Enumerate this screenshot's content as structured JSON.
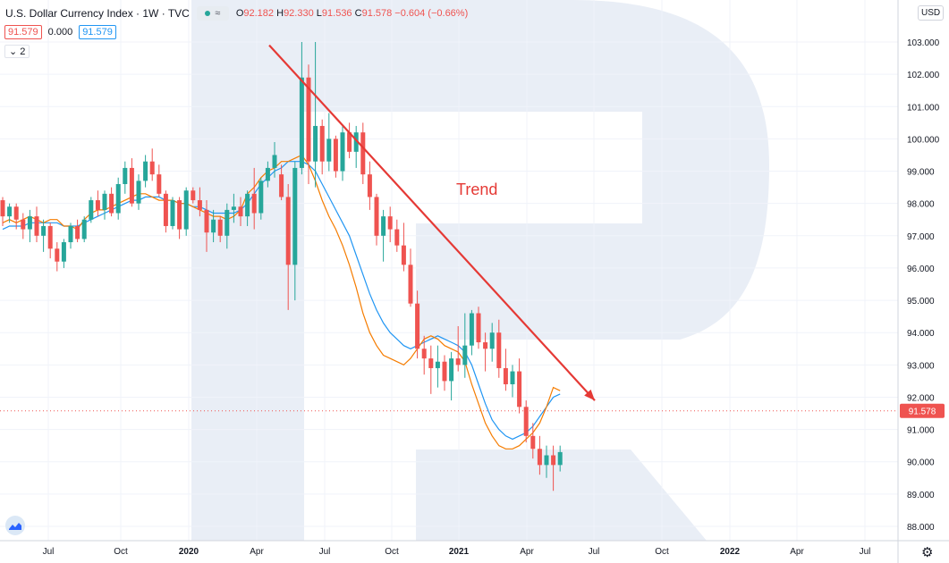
{
  "header": {
    "symbol_title": "U.S. Dollar Currency Index · 1W · TVC",
    "indicator_glyph": "≈",
    "ohlc": {
      "o_label": "O",
      "o_value": "92.182",
      "h_label": "H",
      "h_value": "92.330",
      "l_label": "L",
      "l_value": "91.536",
      "c_label": "C",
      "c_value": "91.578",
      "change": "−0.604 (−0.66%)"
    },
    "bid": "91.579",
    "spread": "0.000",
    "ask": "91.579",
    "collapse_label": "2"
  },
  "price_scale": {
    "currency": "USD",
    "current_price_label": "91.578",
    "tick_labels": [
      "88.000",
      "89.000",
      "90.000",
      "91.000",
      "92.000",
      "93.000",
      "94.000",
      "95.000",
      "96.000",
      "97.000",
      "98.000",
      "99.000",
      "100.000",
      "101.000",
      "102.000",
      "103.000"
    ]
  },
  "time_scale": {
    "tick_labels": [
      "Jul",
      "Oct",
      "2020",
      "Apr",
      "Jul",
      "Oct",
      "2021",
      "Apr",
      "Jul",
      "Oct",
      "2022",
      "Apr",
      "Jul"
    ]
  },
  "annotation": {
    "trend_label": "Trend"
  },
  "colors": {
    "up": "#26a69a",
    "down": "#ef5350",
    "ma_fast": "#f57c00",
    "ma_slow": "#2196f3",
    "trend_line": "#e53935",
    "watermark": "#e9eef6"
  },
  "chart_data": {
    "type": "candlestick",
    "title": "U.S. Dollar Currency Index · 1W · TVC",
    "y_range": [
      87.6,
      103.9
    ],
    "x_ticks": [
      "Jul",
      "Oct",
      "2020",
      "Apr",
      "Jul",
      "Oct",
      "2021",
      "Apr",
      "Jul",
      "Oct",
      "2022",
      "Apr",
      "Jul"
    ],
    "last_price": 91.578,
    "trend_line": {
      "label": "Trend",
      "start": {
        "week": 40,
        "value": 102.9
      },
      "end": {
        "week": 85,
        "value": 91.9
      }
    },
    "ma_fast": [
      97.4,
      97.5,
      97.4,
      97.5,
      97.6,
      97.5,
      97.4,
      97.5,
      97.5,
      97.3,
      97.3,
      97.2,
      97.5,
      97.7,
      97.8,
      97.8,
      97.9,
      98.0,
      98.1,
      98.2,
      98.3,
      98.3,
      98.2,
      98.1,
      98.1,
      98.1,
      98.0,
      98.0,
      97.9,
      97.8,
      97.7,
      97.6,
      97.6,
      97.5,
      97.6,
      97.8,
      98.3,
      98.5,
      98.8,
      99.0,
      99.1,
      99.3,
      99.3,
      99.4,
      99.5,
      99.2,
      98.7,
      98.1,
      97.6,
      97.2,
      96.7,
      96.1,
      95.4,
      94.6,
      94.0,
      93.6,
      93.3,
      93.2,
      93.1,
      93.0,
      93.2,
      93.5,
      93.8,
      93.9,
      93.8,
      93.6,
      93.5,
      93.4,
      93.1,
      92.4,
      91.8,
      91.2,
      90.8,
      90.5,
      90.4,
      90.4,
      90.5,
      90.7,
      90.9,
      91.2,
      91.7,
      92.3,
      92.2
    ],
    "ma_slow": [
      97.2,
      97.3,
      97.3,
      97.3,
      97.4,
      97.4,
      97.4,
      97.4,
      97.4,
      97.3,
      97.3,
      97.3,
      97.4,
      97.5,
      97.6,
      97.7,
      97.8,
      97.9,
      98.0,
      98.1,
      98.1,
      98.2,
      98.2,
      98.2,
      98.1,
      98.1,
      98.0,
      98.0,
      97.9,
      97.9,
      97.8,
      97.7,
      97.7,
      97.7,
      97.7,
      97.8,
      98.0,
      98.3,
      98.6,
      98.8,
      99.0,
      99.1,
      99.3,
      99.3,
      99.3,
      99.2,
      99.0,
      98.6,
      98.2,
      97.8,
      97.4,
      97.0,
      96.4,
      95.8,
      95.2,
      94.7,
      94.3,
      94.0,
      93.8,
      93.6,
      93.5,
      93.6,
      93.7,
      93.8,
      93.9,
      93.8,
      93.7,
      93.6,
      93.4,
      93.0,
      92.4,
      91.8,
      91.3,
      91.0,
      90.8,
      90.7,
      90.8,
      90.9,
      91.1,
      91.4,
      91.7,
      92.0,
      92.1
    ],
    "candles": [
      [
        98.1,
        98.2,
        97.3,
        97.6
      ],
      [
        97.6,
        98.0,
        97.4,
        97.9
      ],
      [
        97.9,
        98.0,
        97.2,
        97.5
      ],
      [
        97.5,
        97.7,
        96.9,
        97.2
      ],
      [
        97.2,
        97.8,
        96.8,
        97.6
      ],
      [
        97.6,
        97.9,
        96.8,
        97.0
      ],
      [
        97.0,
        97.5,
        96.5,
        97.3
      ],
      [
        97.3,
        97.4,
        96.3,
        96.6
      ],
      [
        96.6,
        96.8,
        95.9,
        96.2
      ],
      [
        96.2,
        96.9,
        96.0,
        96.8
      ],
      [
        96.8,
        97.4,
        96.6,
        97.3
      ],
      [
        97.3,
        97.5,
        96.8,
        96.9
      ],
      [
        96.9,
        97.6,
        96.8,
        97.5
      ],
      [
        97.5,
        98.2,
        97.4,
        98.1
      ],
      [
        98.1,
        98.4,
        97.6,
        97.8
      ],
      [
        97.8,
        98.4,
        97.5,
        98.3
      ],
      [
        98.3,
        98.5,
        97.6,
        97.7
      ],
      [
        97.7,
        98.8,
        97.5,
        98.6
      ],
      [
        98.6,
        99.3,
        98.3,
        99.1
      ],
      [
        99.1,
        99.4,
        97.9,
        98.0
      ],
      [
        98.0,
        98.9,
        97.8,
        98.7
      ],
      [
        98.7,
        99.5,
        98.5,
        99.3
      ],
      [
        99.3,
        99.7,
        98.7,
        98.9
      ],
      [
        98.9,
        99.2,
        98.2,
        98.3
      ],
      [
        98.3,
        98.4,
        97.1,
        97.3
      ],
      [
        97.3,
        98.2,
        97.2,
        98.1
      ],
      [
        98.1,
        98.2,
        96.9,
        97.2
      ],
      [
        97.2,
        98.5,
        97.0,
        98.4
      ],
      [
        98.4,
        98.5,
        98.0,
        98.1
      ],
      [
        98.1,
        98.5,
        97.6,
        97.8
      ],
      [
        97.8,
        98.1,
        96.5,
        97.1
      ],
      [
        97.1,
        97.8,
        96.8,
        97.5
      ],
      [
        97.5,
        97.6,
        96.8,
        97.0
      ],
      [
        97.0,
        98.0,
        96.6,
        97.8
      ],
      [
        97.8,
        98.3,
        97.4,
        97.9
      ],
      [
        97.9,
        98.2,
        97.3,
        97.6
      ],
      [
        97.6,
        98.4,
        97.3,
        98.3
      ],
      [
        98.3,
        99.1,
        97.2,
        97.7
      ],
      [
        97.7,
        98.8,
        97.5,
        98.7
      ],
      [
        98.7,
        99.3,
        98.5,
        99.1
      ],
      [
        99.1,
        99.9,
        98.8,
        99.5
      ],
      [
        98.9,
        99.2,
        98.1,
        98.2
      ],
      [
        98.2,
        98.6,
        94.7,
        96.1
      ],
      [
        96.1,
        99.3,
        95.0,
        99.1
      ],
      [
        99.1,
        103.0,
        98.9,
        101.9
      ],
      [
        101.9,
        102.3,
        98.6,
        99.3
      ],
      [
        99.3,
        103.0,
        98.5,
        100.4
      ],
      [
        100.4,
        100.6,
        98.9,
        99.3
      ],
      [
        99.3,
        100.8,
        99.0,
        100.0
      ],
      [
        100.0,
        100.1,
        98.8,
        99.0
      ],
      [
        99.0,
        100.4,
        98.7,
        100.2
      ],
      [
        100.2,
        100.5,
        99.4,
        99.6
      ],
      [
        99.6,
        100.4,
        99.1,
        100.2
      ],
      [
        100.2,
        100.5,
        98.6,
        98.9
      ],
      [
        98.9,
        99.3,
        97.8,
        98.2
      ],
      [
        98.2,
        98.3,
        96.7,
        97.0
      ],
      [
        97.0,
        97.8,
        96.2,
        97.6
      ],
      [
        97.6,
        97.9,
        96.8,
        97.2
      ],
      [
        97.2,
        97.5,
        96.5,
        96.7
      ],
      [
        96.7,
        97.4,
        95.9,
        96.1
      ],
      [
        96.1,
        96.6,
        94.8,
        94.9
      ],
      [
        94.9,
        95.3,
        93.2,
        93.5
      ],
      [
        93.5,
        93.9,
        92.7,
        93.2
      ],
      [
        93.2,
        93.6,
        92.1,
        92.9
      ],
      [
        92.9,
        93.6,
        92.3,
        93.1
      ],
      [
        93.1,
        93.3,
        92.2,
        92.5
      ],
      [
        92.5,
        93.4,
        91.9,
        93.2
      ],
      [
        93.2,
        94.2,
        92.8,
        93.0
      ],
      [
        93.0,
        94.6,
        92.6,
        93.6
      ],
      [
        93.6,
        94.7,
        93.3,
        94.6
      ],
      [
        94.6,
        94.8,
        93.5,
        93.7
      ],
      [
        93.7,
        94.0,
        92.8,
        93.5
      ],
      [
        93.5,
        94.3,
        93.1,
        94.0
      ],
      [
        94.0,
        94.4,
        92.6,
        92.9
      ],
      [
        92.9,
        93.5,
        92.2,
        92.4
      ],
      [
        92.4,
        93.0,
        92.0,
        92.8
      ],
      [
        92.8,
        93.2,
        91.5,
        91.7
      ],
      [
        91.7,
        91.9,
        90.6,
        90.8
      ],
      [
        90.8,
        91.2,
        90.1,
        90.4
      ],
      [
        90.4,
        90.8,
        89.6,
        89.9
      ],
      [
        89.9,
        90.5,
        89.5,
        90.2
      ],
      [
        90.2,
        90.5,
        89.1,
        89.9
      ],
      [
        89.9,
        90.5,
        89.7,
        90.3
      ]
    ]
  }
}
